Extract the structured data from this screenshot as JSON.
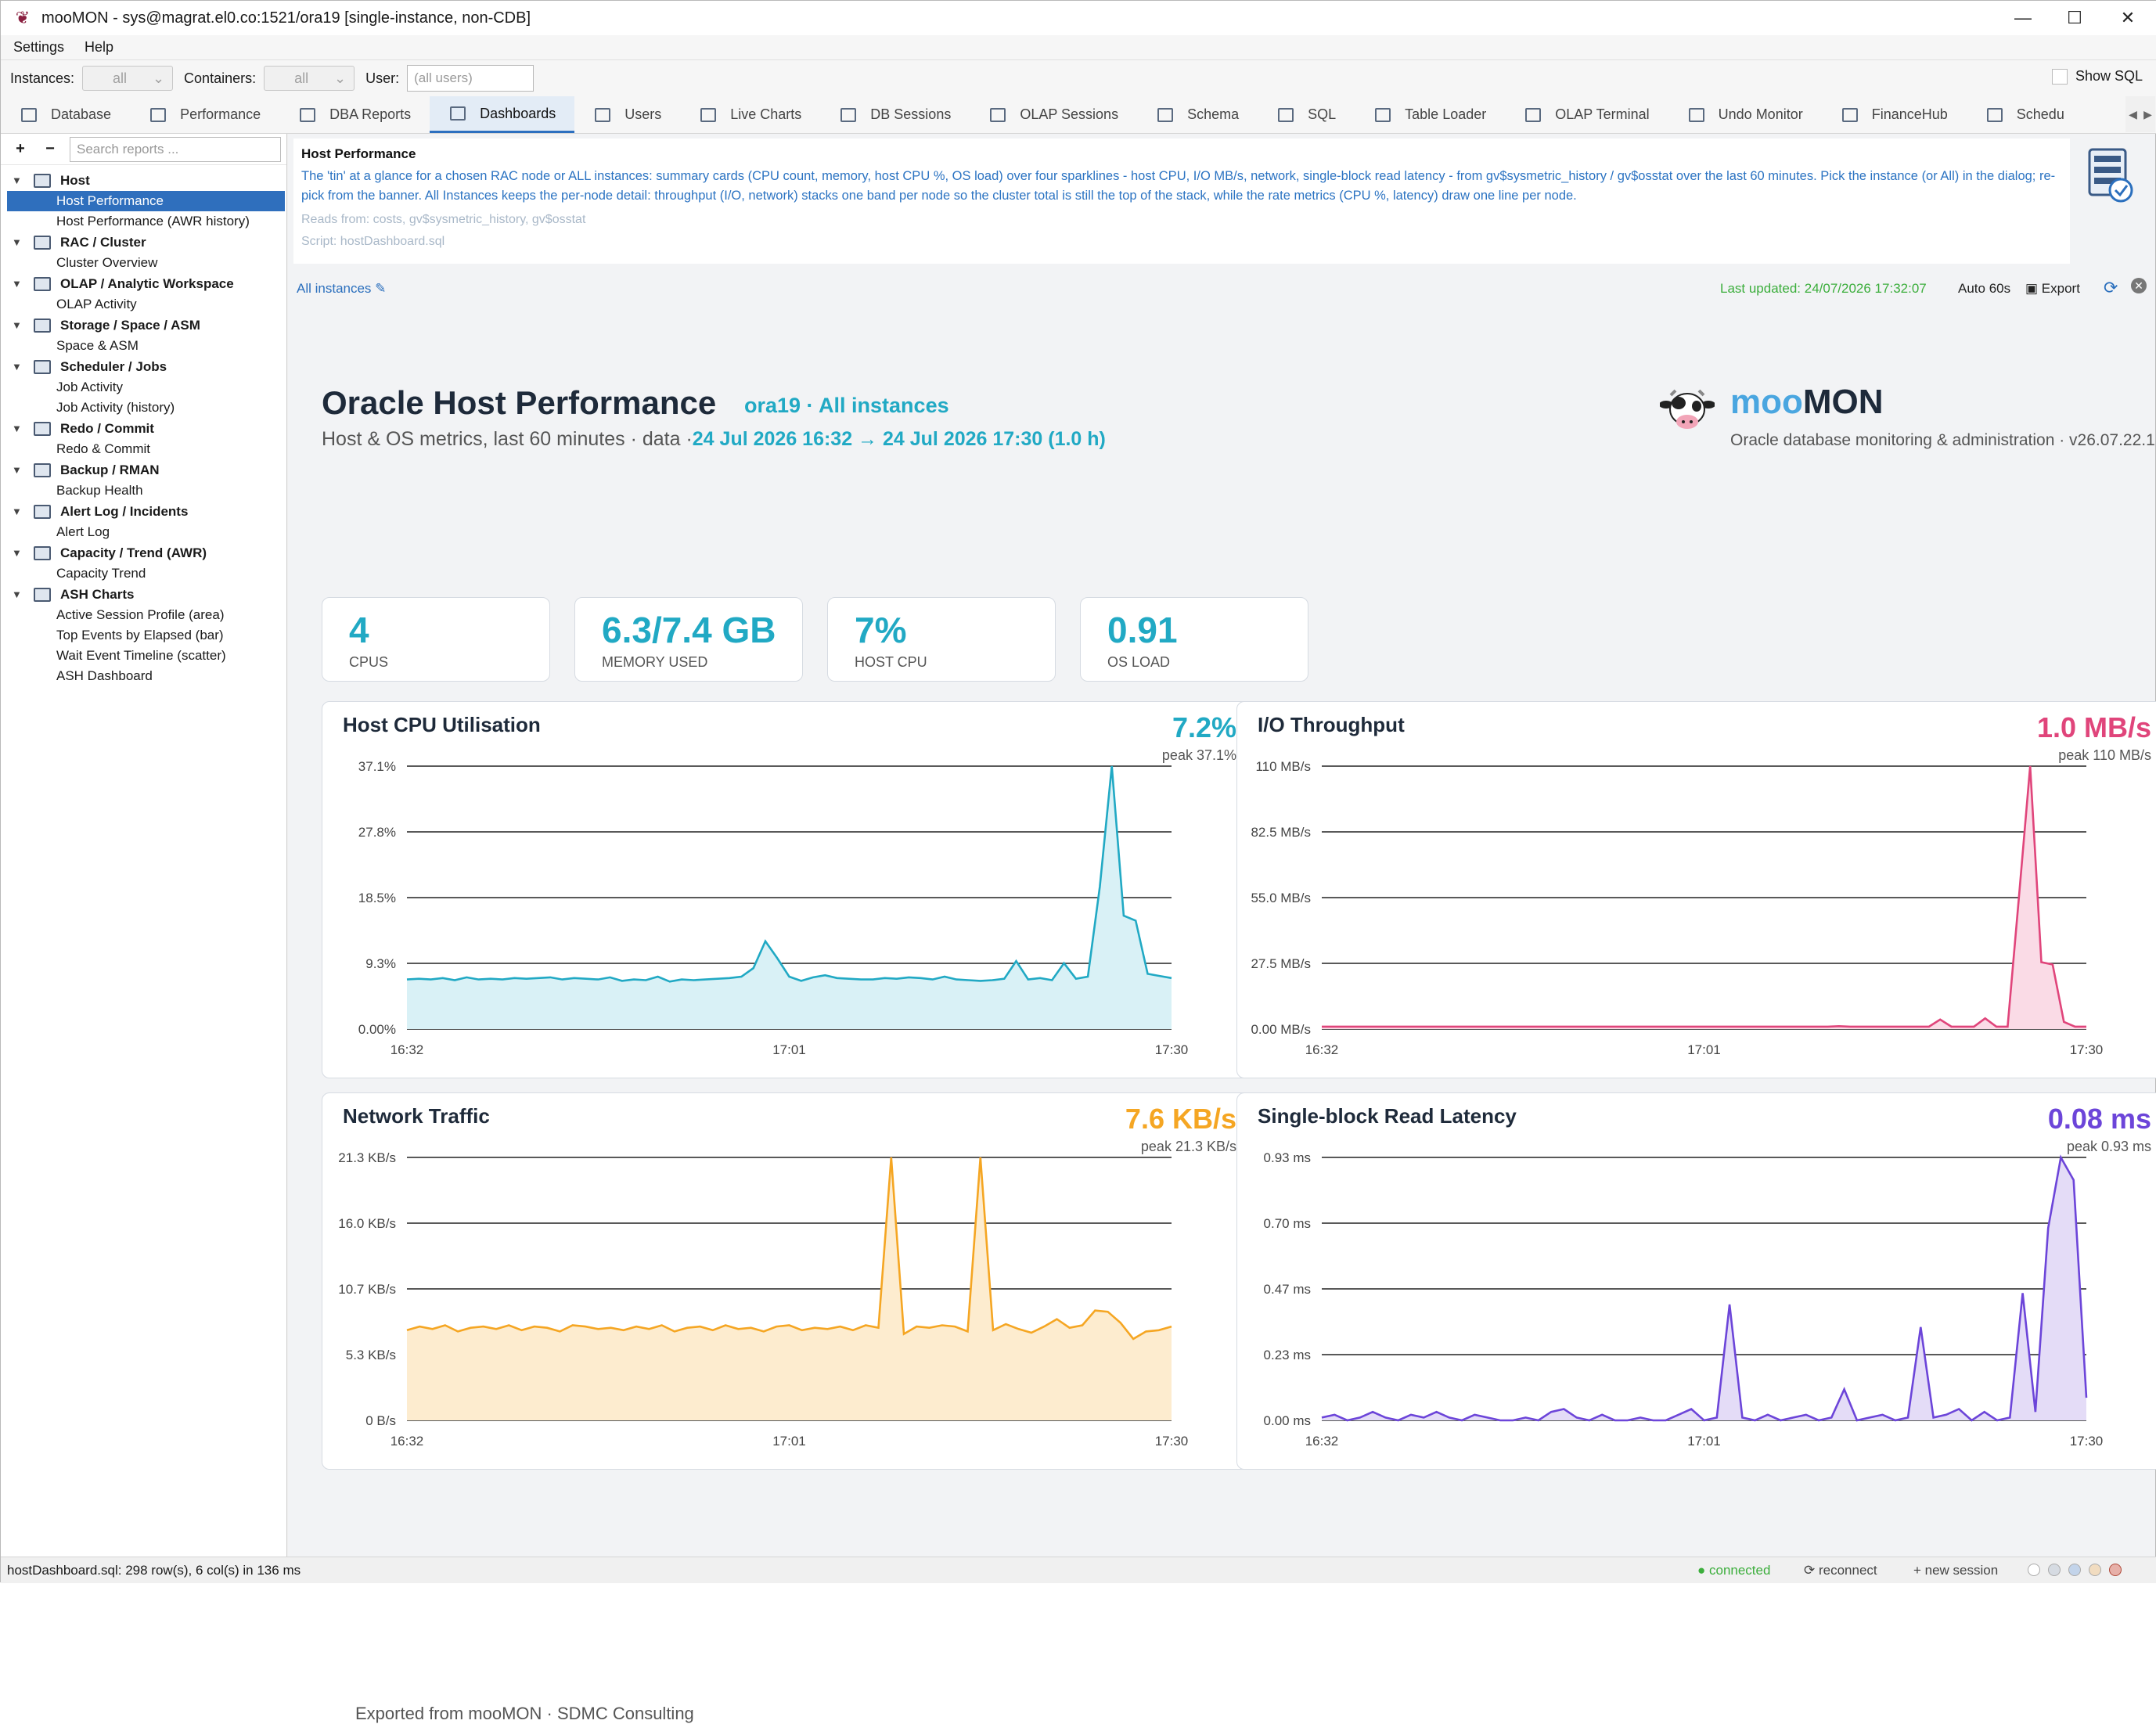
{
  "window": {
    "title": "mooMON - sys@magrat.el0.co:1521/ora19  [single-instance, non-CDB]",
    "min_glyph": "—",
    "max_glyph": "☐",
    "close_glyph": "✕"
  },
  "menu": [
    "Settings",
    "Help"
  ],
  "filters": {
    "instances_label": "Instances:",
    "instances_value": "all",
    "containers_label": "Containers:",
    "containers_value": "all",
    "user_label": "User:",
    "user_placeholder": "(all users)",
    "show_sql": "Show SQL"
  },
  "tabs": [
    {
      "label": "Database",
      "icon": "database-icon"
    },
    {
      "label": "Performance",
      "icon": "chart-icon"
    },
    {
      "label": "DBA Reports",
      "icon": "reports-icon"
    },
    {
      "label": "Dashboards",
      "icon": "dashboard-icon",
      "active": true
    },
    {
      "label": "Users",
      "icon": "users-icon"
    },
    {
      "label": "Live Charts",
      "icon": "live-chart-icon"
    },
    {
      "label": "DB Sessions",
      "icon": "sessions-icon"
    },
    {
      "label": "OLAP Sessions",
      "icon": "olap-icon"
    },
    {
      "label": "Schema",
      "icon": "schema-icon"
    },
    {
      "label": "SQL",
      "icon": "key-icon"
    },
    {
      "label": "Table Loader",
      "icon": "table-icon"
    },
    {
      "label": "OLAP Terminal",
      "icon": "terminal-icon"
    },
    {
      "label": "Undo Monitor",
      "icon": "undo-icon"
    },
    {
      "label": "FinanceHub",
      "icon": "finance-icon"
    },
    {
      "label": "Schedu",
      "icon": "scheduler-icon"
    }
  ],
  "sidebar": {
    "expand": "+",
    "collapse": "−",
    "search_placeholder": "Search reports ...",
    "groups": [
      {
        "label": "Host",
        "items": [
          "Host Performance",
          "Host Performance (AWR history)"
        ]
      },
      {
        "label": "RAC / Cluster",
        "items": [
          "Cluster Overview"
        ]
      },
      {
        "label": "OLAP / Analytic Workspace",
        "items": [
          "OLAP Activity"
        ]
      },
      {
        "label": "Storage / Space / ASM",
        "items": [
          "Space & ASM"
        ]
      },
      {
        "label": "Scheduler / Jobs",
        "items": [
          "Job Activity",
          "Job Activity (history)"
        ]
      },
      {
        "label": "Redo / Commit",
        "items": [
          "Redo & Commit"
        ]
      },
      {
        "label": "Backup / RMAN",
        "items": [
          "Backup Health"
        ]
      },
      {
        "label": "Alert Log / Incidents",
        "items": [
          "Alert Log"
        ]
      },
      {
        "label": "Capacity / Trend (AWR)",
        "items": [
          "Capacity Trend"
        ]
      },
      {
        "label": "ASH Charts",
        "items": [
          "Active Session Profile (area)",
          "Top Events by Elapsed (bar)",
          "Wait Event Timeline (scatter)",
          "ASH Dashboard"
        ]
      }
    ]
  },
  "banner": {
    "title": "Host Performance",
    "description": "The 'tin' at a glance for a chosen RAC node or ALL instances: summary cards (CPU count, memory, host CPU %, OS load) over four sparklines - host CPU, I/O MB/s, network, single-block read latency - from gv$sysmetric_history / gv$osstat over the last 60 minutes. Pick the instance (or All) in the dialog; re-pick from the banner. All Instances keeps the per-node detail: throughput (I/O, network) stacks one band per node so the cluster total is still the top of the stack, while the rate metrics (CPU %, latency) draw one line per node.",
    "reads": "Reads from: costs, gv$sysmetric_history, gv$osstat",
    "script": "Script: hostDashboard.sql"
  },
  "toolbar": {
    "all_instances": "All instances ✎",
    "last_updated": "Last updated: 24/07/2026 17:32:07",
    "auto": "Auto 60s",
    "export": "Export"
  },
  "dashboard": {
    "title": "Oracle Host Performance",
    "subtitle": "ora19 · All instances",
    "line2_prefix": "Host & OS metrics, last 60 minutes · data ·",
    "line2_range": "24 Jul 2026 16:32 → 24 Jul 2026 17:30 (1.0 h)",
    "brand_moo": "moo",
    "brand_mon": "MON",
    "brand_tag": "Oracle database monitoring & administration · v26.07.22.1",
    "cards": [
      {
        "value": "4",
        "label": "CPUS"
      },
      {
        "value": "6.3/7.4 GB",
        "label": "MEMORY USED"
      },
      {
        "value": "7%",
        "label": "HOST CPU"
      },
      {
        "value": "0.91",
        "label": "OS LOAD"
      }
    ],
    "footer": "Exported from mooMON · SDMC Consulting"
  },
  "chart_data": [
    {
      "type": "area",
      "title": "Host CPU Utilisation",
      "current": "7.2%",
      "peak": "peak 37.1%",
      "color": "#21a9c4",
      "fill": "#d9f1f6",
      "ylim": [
        0,
        37.1
      ],
      "yticks": [
        "37.1%",
        "27.8%",
        "18.5%",
        "9.3%",
        "0.00%"
      ],
      "xticks": [
        "16:32",
        "17:01",
        "17:30"
      ],
      "values": [
        7.0,
        7.1,
        7.0,
        7.2,
        6.9,
        7.3,
        7.0,
        7.1,
        7.0,
        7.2,
        7.1,
        7.2,
        7.3,
        7.0,
        7.2,
        7.1,
        7.0,
        7.3,
        6.8,
        7.0,
        6.9,
        7.4,
        6.7,
        7.0,
        6.9,
        7.0,
        7.1,
        7.2,
        7.4,
        8.6,
        12.4,
        10.0,
        7.4,
        6.8,
        7.3,
        7.6,
        7.2,
        7.1,
        7.0,
        7.0,
        7.2,
        7.1,
        7.3,
        7.2,
        7.0,
        7.4,
        7.0,
        6.9,
        6.8,
        6.9,
        7.1,
        9.6,
        7.0,
        7.2,
        6.9,
        9.3,
        7.1,
        7.4,
        20.1,
        37.1,
        16.0,
        15.3,
        7.8,
        7.5,
        7.2
      ]
    },
    {
      "type": "area",
      "title": "I/O Throughput",
      "current": "1.0 MB/s",
      "peak": "peak 110 MB/s",
      "color": "#e0457b",
      "fill": "#fadbe6",
      "ylim": [
        0,
        110
      ],
      "yticks": [
        "110 MB/s",
        "82.5 MB/s",
        "55.0 MB/s",
        "27.5 MB/s",
        "0.00 MB/s"
      ],
      "xticks": [
        "16:32",
        "17:01",
        "17:30"
      ],
      "values": [
        1.0,
        1.0,
        1.0,
        1.0,
        1.0,
        1.0,
        1.0,
        1.0,
        1.0,
        1.0,
        1.0,
        1.0,
        1.0,
        1.0,
        1.0,
        1.0,
        1.0,
        1.0,
        1.0,
        1.0,
        1.0,
        1.0,
        1.0,
        1.0,
        1.0,
        1.0,
        1.0,
        1.0,
        1.0,
        1.0,
        1.0,
        1.0,
        1.0,
        1.0,
        1.0,
        1.0,
        1.0,
        1.0,
        1.0,
        1.0,
        1.0,
        1.0,
        1.0,
        1.0,
        1.0,
        1.0,
        1.2,
        1.0,
        1.0,
        1.0,
        1.0,
        1.0,
        1.0,
        1.0,
        1.0,
        4.0,
        1.0,
        1.0,
        1.0,
        4.5,
        1.0,
        1.0,
        55,
        110,
        28,
        27,
        3,
        1.0,
        1.0
      ]
    },
    {
      "type": "area",
      "title": "Network Traffic",
      "current": "7.6 KB/s",
      "peak": "peak 21.3 KB/s",
      "color": "#f5a623",
      "fill": "#fdeccf",
      "ylim": [
        0,
        21.3
      ],
      "yticks": [
        "21.3 KB/s",
        "16.0 KB/s",
        "10.7 KB/s",
        "5.3 KB/s",
        "0 B/s"
      ],
      "xticks": [
        "16:32",
        "17:01",
        "17:30"
      ],
      "values": [
        7.3,
        7.6,
        7.4,
        7.7,
        7.2,
        7.5,
        7.6,
        7.4,
        7.7,
        7.3,
        7.6,
        7.5,
        7.2,
        7.7,
        7.6,
        7.4,
        7.5,
        7.3,
        7.6,
        7.4,
        7.7,
        7.2,
        7.5,
        7.6,
        7.3,
        7.7,
        7.4,
        7.5,
        7.2,
        7.6,
        7.7,
        7.3,
        7.5,
        7.4,
        7.6,
        7.3,
        7.7,
        7.5,
        21.3,
        7.0,
        7.6,
        7.5,
        7.7,
        7.6,
        7.2,
        21.3,
        7.3,
        7.8,
        7.4,
        7.1,
        7.6,
        8.2,
        7.5,
        7.7,
        8.9,
        8.8,
        7.9,
        6.6,
        7.2,
        7.3,
        7.6
      ]
    },
    {
      "type": "area",
      "title": "Single-block Read Latency",
      "current": "0.08 ms",
      "peak": "peak 0.93 ms",
      "color": "#6c45d9",
      "fill": "#e4dcf7",
      "ylim": [
        0,
        0.93
      ],
      "yticks": [
        "0.93 ms",
        "0.70 ms",
        "0.47 ms",
        "0.23 ms",
        "0.00 ms"
      ],
      "xticks": [
        "16:32",
        "17:01",
        "17:30"
      ],
      "values": [
        0.01,
        0.02,
        0.0,
        0.01,
        0.03,
        0.01,
        0.0,
        0.02,
        0.01,
        0.03,
        0.01,
        0.0,
        0.02,
        0.01,
        0.0,
        0.0,
        0.01,
        0.0,
        0.03,
        0.04,
        0.01,
        0.0,
        0.02,
        0.0,
        0.0,
        0.01,
        0.0,
        0.0,
        0.02,
        0.04,
        0.0,
        0.01,
        0.41,
        0.01,
        0.0,
        0.02,
        0.0,
        0.01,
        0.02,
        0.0,
        0.01,
        0.11,
        0.0,
        0.01,
        0.02,
        0.0,
        0.01,
        0.33,
        0.01,
        0.02,
        0.04,
        0.0,
        0.03,
        0.0,
        0.01,
        0.45,
        0.03,
        0.68,
        0.93,
        0.85,
        0.08
      ]
    }
  ],
  "status": {
    "left": "hostDashboard.sql: 298 row(s), 6 col(s) in 136 ms",
    "connected": "● connected",
    "reconnect": "⟳ reconnect",
    "new_session": "+ new session"
  }
}
